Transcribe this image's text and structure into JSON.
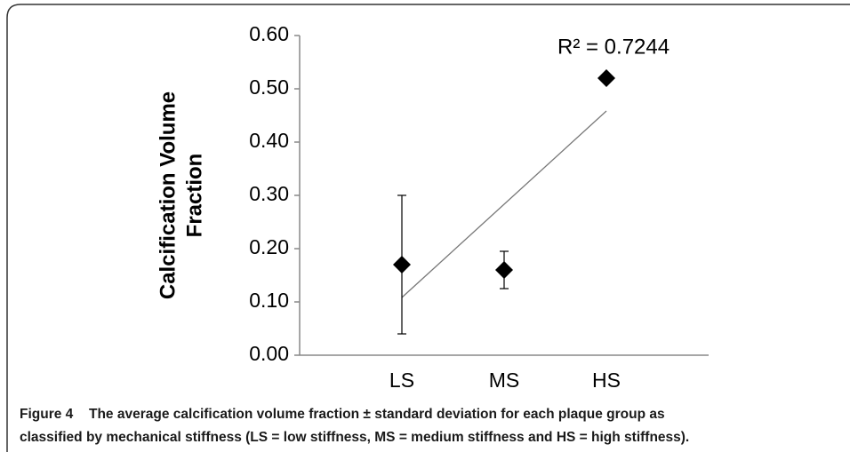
{
  "chart_data": {
    "type": "scatter",
    "y_label": [
      "Calcification Volume",
      "Fraction"
    ],
    "categories": [
      "LS",
      "MS",
      "HS"
    ],
    "values": [
      0.17,
      0.16,
      0.52
    ],
    "errors": [
      0.13,
      0.035,
      0
    ],
    "color": "#000000",
    "trendline": "linear",
    "annotation": "R² = 0.7244",
    "ylim": [
      0,
      0.6
    ],
    "yticks": [
      {
        "value": 0,
        "label": "0.00"
      },
      {
        "value": 0.1,
        "label": "0.10"
      },
      {
        "value": 0.2,
        "label": "0.20"
      },
      {
        "value": 0.3,
        "label": "0.30"
      },
      {
        "value": 0.4,
        "label": "0.40"
      },
      {
        "value": 0.5,
        "label": "0.50"
      },
      {
        "value": 0.6,
        "label": "0.60"
      }
    ],
    "grid": false
  },
  "caption": {
    "label": "Figure 4",
    "lines": [
      "The average calcification volume fraction ± standard deviation for each plaque group as",
      "classified by mechanical stiffness (LS = low stiffness, MS = medium stiffness and HS = high stiffness)."
    ]
  }
}
